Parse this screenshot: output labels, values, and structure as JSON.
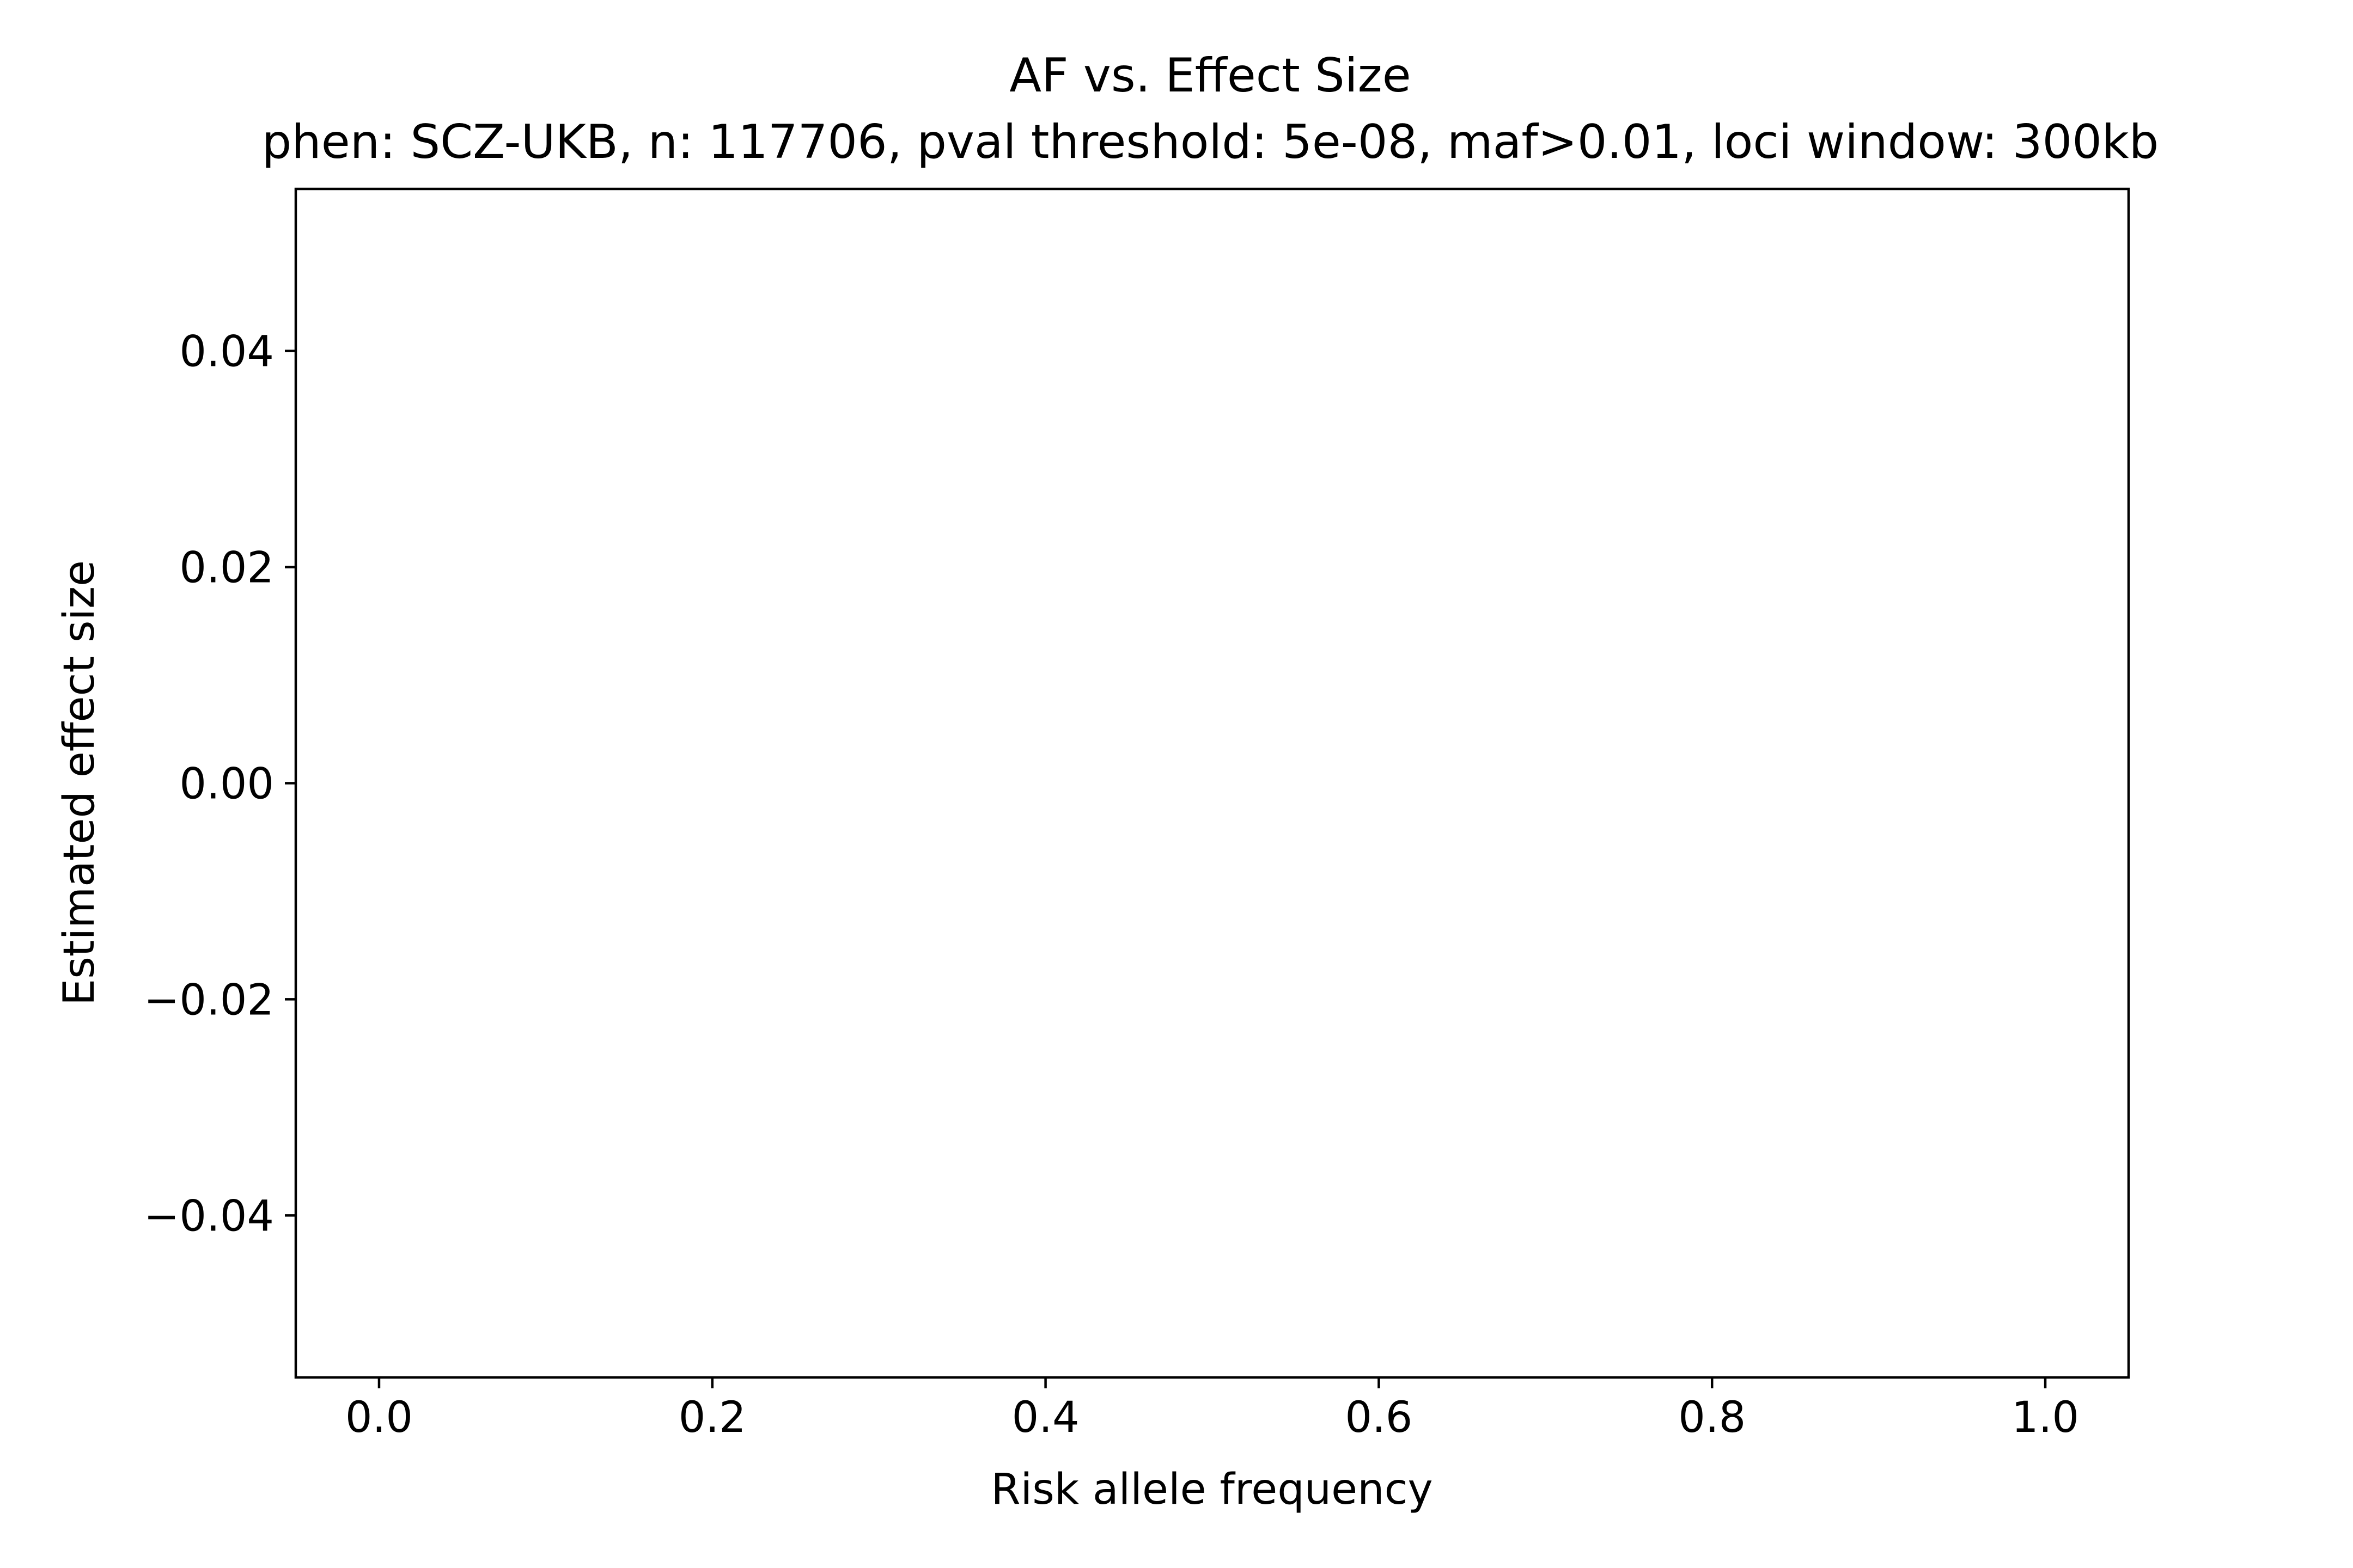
{
  "chart_data": {
    "type": "scatter",
    "title": "AF vs. Effect Size",
    "subtitle": "phen: SCZ-UKB, n: 117706, pval threshold: 5e-08, maf>0.01, loci window: 300kb",
    "xlabel": "Risk allele frequency",
    "ylabel": "Estimated effect size",
    "xlim": [
      -0.05,
      1.05
    ],
    "ylim": [
      -0.055,
      0.055
    ],
    "x_ticks": [
      0.0,
      0.2,
      0.4,
      0.6,
      0.8,
      1.0
    ],
    "x_tick_labels": [
      "0.0",
      "0.2",
      "0.4",
      "0.6",
      "0.8",
      "1.0"
    ],
    "y_ticks": [
      0.04,
      0.02,
      0.0,
      -0.02,
      -0.04
    ],
    "y_tick_labels": [
      "0.04",
      "0.02",
      "0.00",
      "−0.02",
      "−0.04"
    ],
    "grid": false,
    "series": [
      {
        "x": [],
        "y": []
      }
    ]
  }
}
